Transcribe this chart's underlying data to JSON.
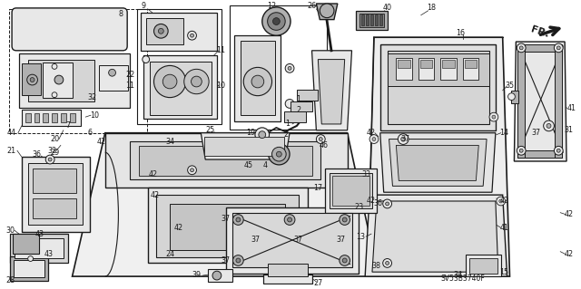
{
  "part_number": "SV53B3740F",
  "bg_color": "#ffffff",
  "line_color": "#1a1a1a",
  "fig_width": 6.4,
  "fig_height": 3.19,
  "dpi": 100,
  "gray_fill": "#c8c8c8",
  "light_gray": "#e8e8e8",
  "mid_gray": "#b0b0b0",
  "dark_gray": "#888888"
}
